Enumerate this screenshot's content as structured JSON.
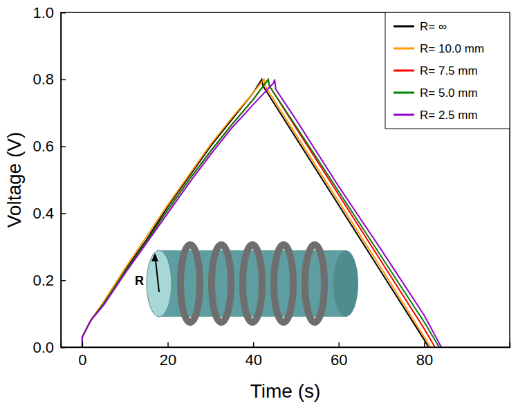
{
  "chart_data": {
    "type": "line",
    "x_label": "Time (s)",
    "y_label": "Voltage (V)",
    "xlim": [
      -5,
      100
    ],
    "xticks": [
      0,
      20,
      40,
      60,
      80
    ],
    "ylim": [
      0,
      1
    ],
    "yticks": [
      {
        "value": 0,
        "label": "0.0"
      },
      0.2,
      0.4,
      0.6,
      0.8,
      {
        "value": 1,
        "label": "1.0"
      }
    ],
    "legend": "top-right",
    "annotations": [
      "R"
    ],
    "series": [
      {
        "name": "R= ∞",
        "color": "#000000",
        "x": [
          0,
          0,
          2,
          5,
          10,
          15,
          20,
          25,
          30,
          35,
          40,
          42,
          42.3,
          50,
          60,
          70,
          80,
          81
        ],
        "values": [
          0,
          0.03,
          0.08,
          0.13,
          0.23,
          0.32,
          0.42,
          0.51,
          0.6,
          0.68,
          0.76,
          0.8,
          0.78,
          0.625,
          0.424,
          0.223,
          0.022,
          0
        ]
      },
      {
        "name": "R= 10.0 mm",
        "color": "#ff9900",
        "x": [
          0,
          0,
          2,
          5,
          10,
          15,
          20,
          25,
          30,
          35,
          40,
          42.5,
          42.8,
          50,
          60,
          70,
          80,
          81.5
        ],
        "values": [
          0,
          0.03,
          0.08,
          0.135,
          0.235,
          0.33,
          0.425,
          0.515,
          0.605,
          0.685,
          0.76,
          0.8,
          0.78,
          0.635,
          0.435,
          0.235,
          0.03,
          0
        ]
      },
      {
        "name": "R= 7.5 mm",
        "color": "#ff0000",
        "x": [
          0,
          0,
          2,
          5,
          10,
          15,
          20,
          25,
          30,
          35,
          40,
          43.5,
          43.8,
          50,
          60,
          70,
          80,
          82.5
        ],
        "values": [
          0,
          0.03,
          0.08,
          0.13,
          0.225,
          0.315,
          0.41,
          0.5,
          0.585,
          0.665,
          0.74,
          0.8,
          0.78,
          0.655,
          0.455,
          0.255,
          0.055,
          0
        ]
      },
      {
        "name": "R= 5.0 mm",
        "color": "#008000",
        "x": [
          0,
          0,
          2,
          5,
          10,
          15,
          20,
          25,
          30,
          35,
          40,
          43.5,
          43.8,
          50,
          60,
          70,
          80,
          83.5
        ],
        "values": [
          0,
          0.03,
          0.08,
          0.13,
          0.225,
          0.315,
          0.41,
          0.5,
          0.585,
          0.665,
          0.74,
          0.8,
          0.78,
          0.66,
          0.465,
          0.27,
          0.075,
          0
        ]
      },
      {
        "name": "R= 2.5 mm",
        "color": "#9400d3",
        "x": [
          0,
          0,
          2,
          5,
          10,
          15,
          20,
          25,
          30,
          35,
          40,
          44.8,
          45,
          45.3,
          50,
          60,
          70,
          80,
          84
        ],
        "values": [
          0,
          0.03,
          0.08,
          0.125,
          0.22,
          0.31,
          0.4,
          0.49,
          0.575,
          0.655,
          0.725,
          0.79,
          0.8,
          0.77,
          0.68,
          0.48,
          0.29,
          0.095,
          0
        ]
      }
    ]
  }
}
